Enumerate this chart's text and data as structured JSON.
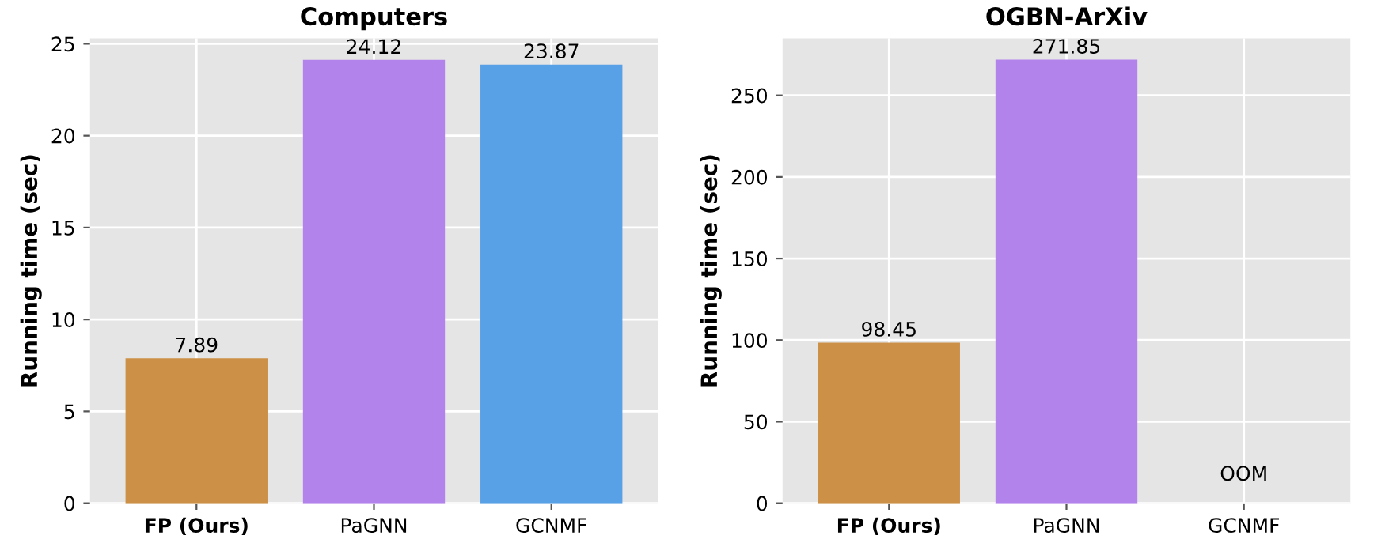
{
  "chart_data": [
    {
      "type": "bar",
      "title": "Computers",
      "ylabel": "Running time (sec)",
      "categories": [
        "FP (Ours)",
        "PaGNN",
        "GCNMF"
      ],
      "values": [
        7.89,
        24.12,
        23.87
      ],
      "colors": [
        "#cc9046",
        "#b383ec",
        "#58a1e6"
      ],
      "ylim": [
        0,
        25.3
      ],
      "yticks": [
        0,
        5,
        10,
        15,
        20,
        25
      ],
      "grid": true,
      "data_labels": true
    },
    {
      "type": "bar",
      "title": "OGBN-ArXiv",
      "ylabel": "Running time (sec)",
      "categories": [
        "FP (Ours)",
        "PaGNN",
        "GCNMF"
      ],
      "values": [
        98.45,
        271.85,
        null
      ],
      "colors": [
        "#cc9046",
        "#b383ec",
        "#58a1e6"
      ],
      "ylim": [
        0,
        285
      ],
      "yticks": [
        0,
        50,
        100,
        150,
        200,
        250
      ],
      "grid": true,
      "data_labels": true,
      "annotations": [
        "OOM"
      ]
    }
  ]
}
